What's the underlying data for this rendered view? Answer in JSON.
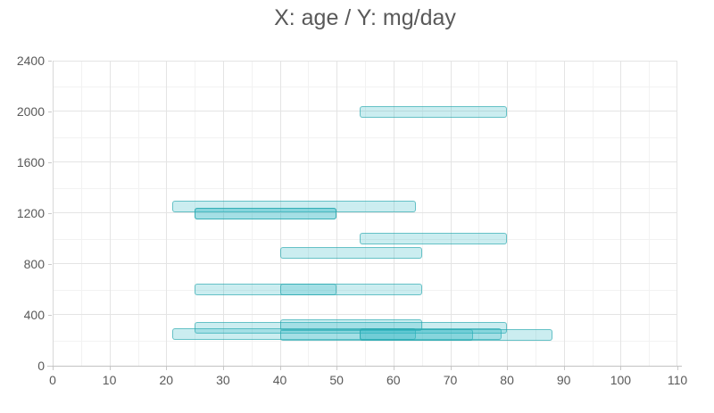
{
  "title": "X: age / Y: mg/day",
  "colors": {
    "bar_fill": "rgba(47,183,196,0.25)",
    "bar_border": "rgba(38,166,172,0.62)",
    "grid_major": "#e4e4e4",
    "grid_minor": "#f2f2f2",
    "axis_line": "#c2c2c2",
    "label_text": "#595959"
  },
  "chart_data": {
    "type": "bar",
    "subtype": "horizontal-range-bars",
    "title": "X: age / Y: mg/day",
    "xlabel": "age",
    "ylabel": "mg/day",
    "xlim": [
      0,
      110
    ],
    "ylim": [
      0,
      2400
    ],
    "x_ticks": [
      0,
      10,
      20,
      30,
      40,
      50,
      60,
      70,
      80,
      90,
      100,
      110
    ],
    "y_ticks": [
      0,
      400,
      800,
      1200,
      1600,
      2000,
      2400
    ],
    "x_minor_step": 5,
    "y_minor_step": 200,
    "grid": "on",
    "legend": "none",
    "bars": [
      {
        "age_start": 54,
        "age_end": 80,
        "mg_per_day": 2000
      },
      {
        "age_start": 21,
        "age_end": 64,
        "mg_per_day": 1250
      },
      {
        "age_start": 25,
        "age_end": 50,
        "mg_per_day": 1200
      },
      {
        "age_start": 25,
        "age_end": 50,
        "mg_per_day": 1200
      },
      {
        "age_start": 54,
        "age_end": 80,
        "mg_per_day": 1000
      },
      {
        "age_start": 40,
        "age_end": 65,
        "mg_per_day": 890
      },
      {
        "age_start": 25,
        "age_end": 65,
        "mg_per_day": 600
      },
      {
        "age_start": 40,
        "age_end": 50,
        "mg_per_day": 600
      },
      {
        "age_start": 25,
        "age_end": 80,
        "mg_per_day": 300
      },
      {
        "age_start": 40,
        "age_end": 65,
        "mg_per_day": 320
      },
      {
        "age_start": 21,
        "age_end": 64,
        "mg_per_day": 250
      },
      {
        "age_start": 40,
        "age_end": 74,
        "mg_per_day": 240
      },
      {
        "age_start": 54,
        "age_end": 79,
        "mg_per_day": 250
      },
      {
        "age_start": 54,
        "age_end": 88,
        "mg_per_day": 240
      }
    ]
  }
}
